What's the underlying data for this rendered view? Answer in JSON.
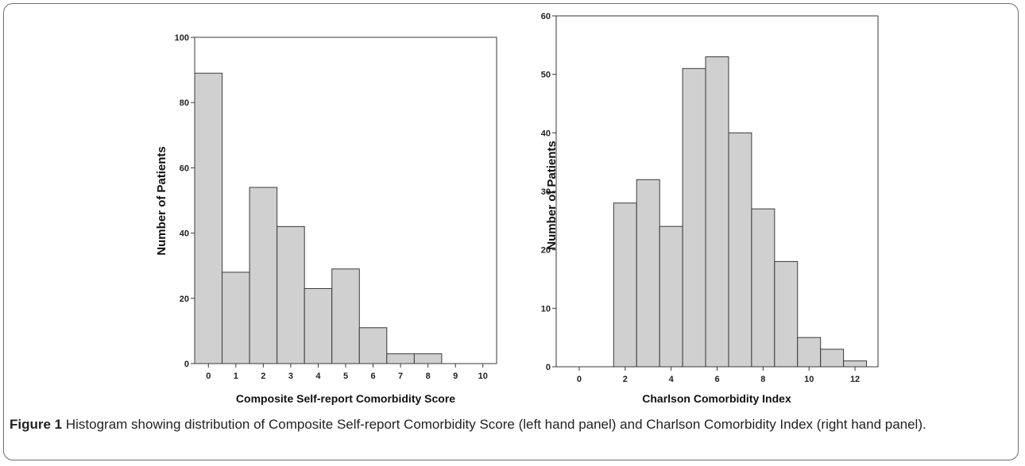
{
  "chart_data": [
    {
      "type": "bar",
      "xlabel": "Composite Self-report Comorbidity Score",
      "ylabel": "Number of Patients",
      "ylim": [
        0,
        100
      ],
      "yticks": [
        0,
        20,
        40,
        60,
        80,
        100
      ],
      "xlim": [
        -0.5,
        10.5
      ],
      "xticks": [
        0,
        1,
        2,
        3,
        4,
        5,
        6,
        7,
        8,
        9,
        10
      ],
      "bin_width": 1,
      "x": [
        0,
        1,
        2,
        3,
        4,
        5,
        6,
        7,
        8,
        9,
        10
      ],
      "values": [
        89,
        28,
        54,
        42,
        23,
        29,
        11,
        3,
        3,
        0,
        0
      ],
      "grid": false
    },
    {
      "type": "bar",
      "xlabel": "Charlson Comorbidity Index",
      "ylabel": "Number of Patients",
      "ylim": [
        0,
        60
      ],
      "yticks": [
        0,
        10,
        20,
        30,
        40,
        50,
        60
      ],
      "xlim": [
        -1,
        13
      ],
      "xticks": [
        0,
        2,
        4,
        6,
        8,
        10,
        12
      ],
      "bin_width": 1,
      "x": [
        0,
        1,
        2,
        3,
        4,
        5,
        6,
        7,
        8,
        9,
        10,
        11,
        12
      ],
      "values": [
        0,
        0,
        28,
        32,
        24,
        51,
        53,
        40,
        27,
        18,
        5,
        3,
        1
      ],
      "grid": false
    }
  ],
  "caption": {
    "label": "Figure 1",
    "text": "Histogram showing distribution of Composite Self-report Comorbidity Score (left hand panel) and Charlson Comorbidity Index (right hand panel)."
  }
}
